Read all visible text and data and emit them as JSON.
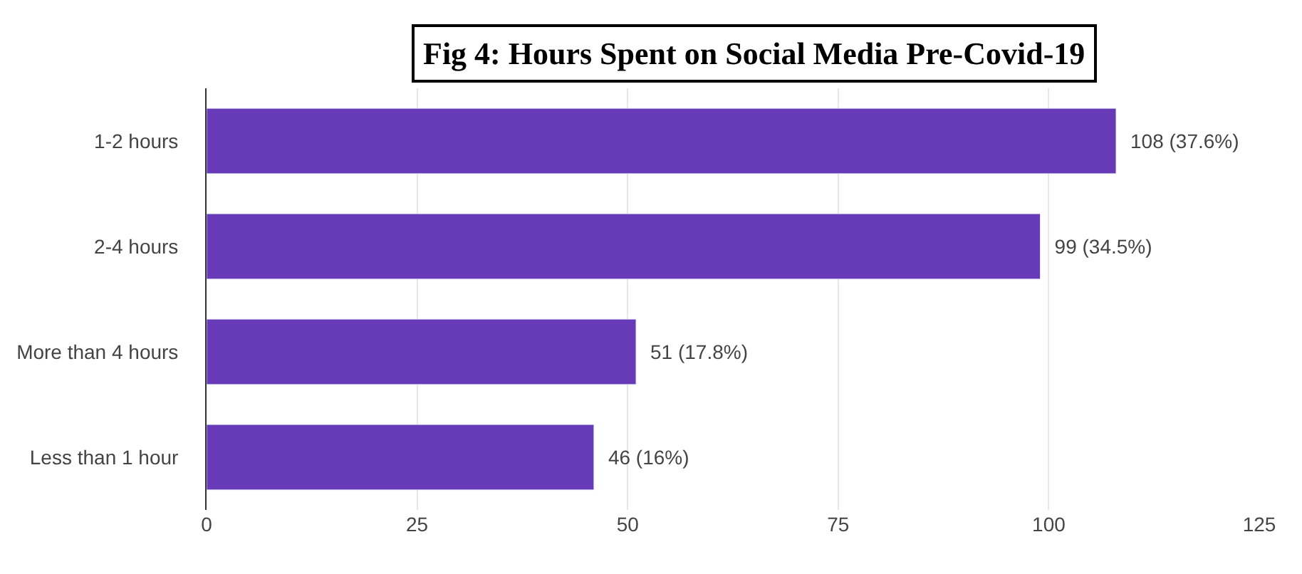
{
  "chart_data": {
    "type": "bar",
    "orientation": "horizontal",
    "title": "Fig 4: Hours Spent on Social Media Pre-Covid-19",
    "categories": [
      "1-2 hours",
      "2-4 hours",
      "More than 4 hours",
      "Less than 1 hour"
    ],
    "values": [
      108,
      99,
      51,
      46
    ],
    "value_labels": [
      "108 (37.6%)",
      "99 (34.5%)",
      "51 (17.8%)",
      "46 (16%)"
    ],
    "color": "#673ab7",
    "xlim": [
      0,
      125
    ],
    "xticks": [
      0,
      25,
      50,
      75,
      100,
      125
    ],
    "grid": "x",
    "legend": false
  }
}
